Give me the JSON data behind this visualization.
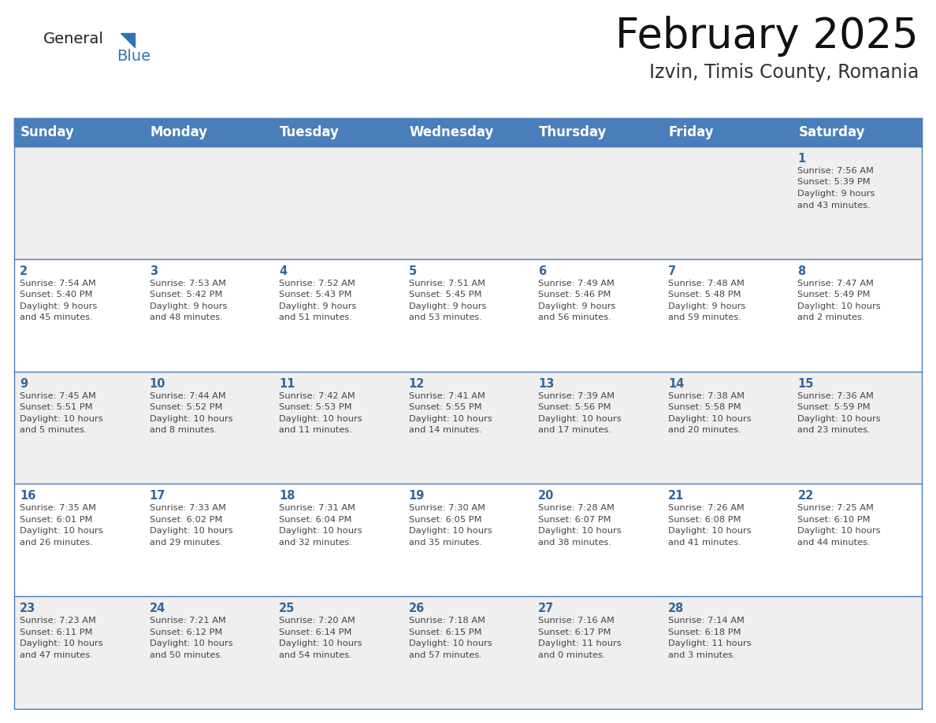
{
  "title": "February 2025",
  "subtitle": "Izvin, Timis County, Romania",
  "header_bg": "#4A7EBB",
  "header_text_color": "#FFFFFF",
  "cell_bg_odd": "#EFEFEF",
  "cell_bg_even": "#FFFFFF",
  "grid_line_color": "#4A7EBB",
  "day_num_color": "#336699",
  "cell_text_color": "#444444",
  "day_headers": [
    "Sunday",
    "Monday",
    "Tuesday",
    "Wednesday",
    "Thursday",
    "Friday",
    "Saturday"
  ],
  "days": [
    {
      "day": 1,
      "col": 6,
      "row": 0,
      "sunrise": "7:56 AM",
      "sunset": "5:39 PM",
      "daylight": "9 hours and 43 minutes."
    },
    {
      "day": 2,
      "col": 0,
      "row": 1,
      "sunrise": "7:54 AM",
      "sunset": "5:40 PM",
      "daylight": "9 hours and 45 minutes."
    },
    {
      "day": 3,
      "col": 1,
      "row": 1,
      "sunrise": "7:53 AM",
      "sunset": "5:42 PM",
      "daylight": "9 hours and 48 minutes."
    },
    {
      "day": 4,
      "col": 2,
      "row": 1,
      "sunrise": "7:52 AM",
      "sunset": "5:43 PM",
      "daylight": "9 hours and 51 minutes."
    },
    {
      "day": 5,
      "col": 3,
      "row": 1,
      "sunrise": "7:51 AM",
      "sunset": "5:45 PM",
      "daylight": "9 hours and 53 minutes."
    },
    {
      "day": 6,
      "col": 4,
      "row": 1,
      "sunrise": "7:49 AM",
      "sunset": "5:46 PM",
      "daylight": "9 hours and 56 minutes."
    },
    {
      "day": 7,
      "col": 5,
      "row": 1,
      "sunrise": "7:48 AM",
      "sunset": "5:48 PM",
      "daylight": "9 hours and 59 minutes."
    },
    {
      "day": 8,
      "col": 6,
      "row": 1,
      "sunrise": "7:47 AM",
      "sunset": "5:49 PM",
      "daylight": "10 hours and 2 minutes."
    },
    {
      "day": 9,
      "col": 0,
      "row": 2,
      "sunrise": "7:45 AM",
      "sunset": "5:51 PM",
      "daylight": "10 hours and 5 minutes."
    },
    {
      "day": 10,
      "col": 1,
      "row": 2,
      "sunrise": "7:44 AM",
      "sunset": "5:52 PM",
      "daylight": "10 hours and 8 minutes."
    },
    {
      "day": 11,
      "col": 2,
      "row": 2,
      "sunrise": "7:42 AM",
      "sunset": "5:53 PM",
      "daylight": "10 hours and 11 minutes."
    },
    {
      "day": 12,
      "col": 3,
      "row": 2,
      "sunrise": "7:41 AM",
      "sunset": "5:55 PM",
      "daylight": "10 hours and 14 minutes."
    },
    {
      "day": 13,
      "col": 4,
      "row": 2,
      "sunrise": "7:39 AM",
      "sunset": "5:56 PM",
      "daylight": "10 hours and 17 minutes."
    },
    {
      "day": 14,
      "col": 5,
      "row": 2,
      "sunrise": "7:38 AM",
      "sunset": "5:58 PM",
      "daylight": "10 hours and 20 minutes."
    },
    {
      "day": 15,
      "col": 6,
      "row": 2,
      "sunrise": "7:36 AM",
      "sunset": "5:59 PM",
      "daylight": "10 hours and 23 minutes."
    },
    {
      "day": 16,
      "col": 0,
      "row": 3,
      "sunrise": "7:35 AM",
      "sunset": "6:01 PM",
      "daylight": "10 hours and 26 minutes."
    },
    {
      "day": 17,
      "col": 1,
      "row": 3,
      "sunrise": "7:33 AM",
      "sunset": "6:02 PM",
      "daylight": "10 hours and 29 minutes."
    },
    {
      "day": 18,
      "col": 2,
      "row": 3,
      "sunrise": "7:31 AM",
      "sunset": "6:04 PM",
      "daylight": "10 hours and 32 minutes."
    },
    {
      "day": 19,
      "col": 3,
      "row": 3,
      "sunrise": "7:30 AM",
      "sunset": "6:05 PM",
      "daylight": "10 hours and 35 minutes."
    },
    {
      "day": 20,
      "col": 4,
      "row": 3,
      "sunrise": "7:28 AM",
      "sunset": "6:07 PM",
      "daylight": "10 hours and 38 minutes."
    },
    {
      "day": 21,
      "col": 5,
      "row": 3,
      "sunrise": "7:26 AM",
      "sunset": "6:08 PM",
      "daylight": "10 hours and 41 minutes."
    },
    {
      "day": 22,
      "col": 6,
      "row": 3,
      "sunrise": "7:25 AM",
      "sunset": "6:10 PM",
      "daylight": "10 hours and 44 minutes."
    },
    {
      "day": 23,
      "col": 0,
      "row": 4,
      "sunrise": "7:23 AM",
      "sunset": "6:11 PM",
      "daylight": "10 hours and 47 minutes."
    },
    {
      "day": 24,
      "col": 1,
      "row": 4,
      "sunrise": "7:21 AM",
      "sunset": "6:12 PM",
      "daylight": "10 hours and 50 minutes."
    },
    {
      "day": 25,
      "col": 2,
      "row": 4,
      "sunrise": "7:20 AM",
      "sunset": "6:14 PM",
      "daylight": "10 hours and 54 minutes."
    },
    {
      "day": 26,
      "col": 3,
      "row": 4,
      "sunrise": "7:18 AM",
      "sunset": "6:15 PM",
      "daylight": "10 hours and 57 minutes."
    },
    {
      "day": 27,
      "col": 4,
      "row": 4,
      "sunrise": "7:16 AM",
      "sunset": "6:17 PM",
      "daylight": "11 hours and 0 minutes."
    },
    {
      "day": 28,
      "col": 5,
      "row": 4,
      "sunrise": "7:14 AM",
      "sunset": "6:18 PM",
      "daylight": "11 hours and 3 minutes."
    }
  ],
  "num_rows": 5,
  "num_cols": 7,
  "logo_general_color": "#222222",
  "logo_blue_color": "#2E75B6",
  "logo_triangle_color": "#2E75B6",
  "title_fontsize": 38,
  "subtitle_fontsize": 17,
  "header_fontsize": 12,
  "day_num_fontsize": 10.5,
  "cell_text_fontsize": 8.2
}
